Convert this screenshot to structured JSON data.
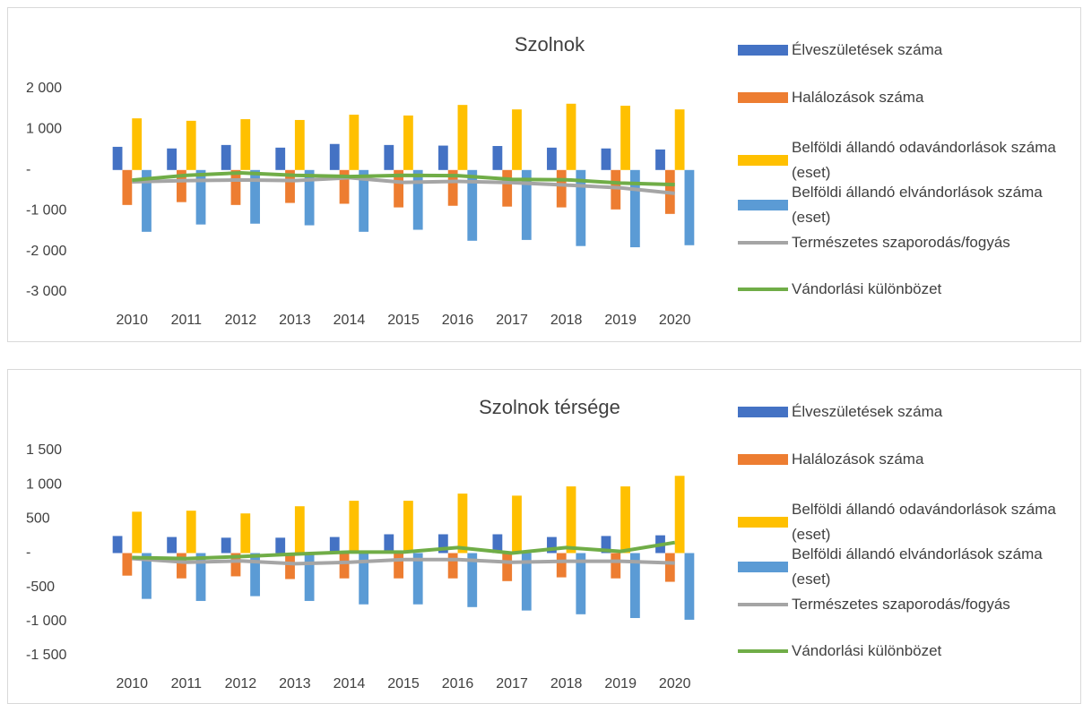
{
  "chart_data": [
    {
      "type": "bar",
      "title": "Szolnok",
      "categories": [
        "2010",
        "2011",
        "2012",
        "2013",
        "2014",
        "2015",
        "2016",
        "2017",
        "2018",
        "2019",
        "2020"
      ],
      "ylim": [
        -3000,
        2000
      ],
      "yticks": [
        {
          "value": -3000,
          "label": "-3 000"
        },
        {
          "value": -2000,
          "label": "-2 000"
        },
        {
          "value": -1000,
          "label": "-1 000"
        },
        {
          "value": 0,
          "label": "-"
        },
        {
          "value": 1000,
          "label": "1 000"
        },
        {
          "value": 2000,
          "label": "2 000"
        }
      ],
      "series": [
        {
          "name": "Élveszületések száma",
          "color": "#4472c4",
          "values": [
            570,
            530,
            615,
            550,
            640,
            615,
            600,
            590,
            550,
            530,
            505
          ]
        },
        {
          "name": "Halálozások száma",
          "color": "#ed7d31",
          "values": [
            -860,
            -790,
            -860,
            -810,
            -830,
            -920,
            -880,
            -900,
            -920,
            -970,
            -1080
          ]
        },
        {
          "name": "Belföldi állandó odavándorlások száma (eset)",
          "color": "#ffc000",
          "values": [
            1270,
            1210,
            1250,
            1230,
            1360,
            1340,
            1600,
            1490,
            1630,
            1580,
            1490
          ]
        },
        {
          "name": "Belföldi állandó elvándorlások száma (eset)",
          "color": "#5b9bd5",
          "values": [
            -1520,
            -1340,
            -1320,
            -1360,
            -1520,
            -1470,
            -1740,
            -1720,
            -1870,
            -1900,
            -1850
          ]
        },
        {
          "name": "Természetes szaporodás/fogyás",
          "color": "#a5a5a5",
          "type": "line",
          "values": [
            -290,
            -260,
            -245,
            -260,
            -190,
            -305,
            -280,
            -310,
            -370,
            -440,
            -575
          ]
        },
        {
          "name": "Vándorlási különbözet",
          "color": "#70ad47",
          "type": "line",
          "values": [
            -250,
            -130,
            -70,
            -130,
            -160,
            -130,
            -140,
            -230,
            -240,
            -320,
            -360
          ]
        }
      ]
    },
    {
      "type": "bar",
      "title": "Szolnok térsége",
      "categories": [
        "2010",
        "2011",
        "2012",
        "2013",
        "2014",
        "2015",
        "2016",
        "2017",
        "2018",
        "2019",
        "2020"
      ],
      "ylim": [
        -1500,
        1500
      ],
      "yticks": [
        {
          "value": -1500,
          "label": "-1 500"
        },
        {
          "value": -1000,
          "label": "-1 000"
        },
        {
          "value": -500,
          "label": "-500"
        },
        {
          "value": 0,
          "label": "-"
        },
        {
          "value": 500,
          "label": "500"
        },
        {
          "value": 1000,
          "label": "1 000"
        },
        {
          "value": 1500,
          "label": "1 500"
        }
      ],
      "series": [
        {
          "name": "Élveszületések száma",
          "color": "#4472c4",
          "values": [
            250,
            235,
            225,
            225,
            235,
            275,
            275,
            275,
            235,
            250,
            260
          ]
        },
        {
          "name": "Halálozások száma",
          "color": "#ed7d31",
          "values": [
            -330,
            -370,
            -340,
            -380,
            -370,
            -370,
            -370,
            -410,
            -355,
            -370,
            -420
          ]
        },
        {
          "name": "Belföldi állandó odavándorlások száma (eset)",
          "color": "#ffc000",
          "values": [
            605,
            620,
            580,
            685,
            765,
            765,
            870,
            840,
            975,
            975,
            1130
          ]
        },
        {
          "name": "Belföldi állandó elvándorlások száma (eset)",
          "color": "#5b9bd5",
          "values": [
            -670,
            -700,
            -630,
            -700,
            -750,
            -750,
            -790,
            -840,
            -895,
            -950,
            -975
          ]
        },
        {
          "name": "Természetes szaporodás/fogyás",
          "color": "#a5a5a5",
          "type": "line",
          "values": [
            -80,
            -135,
            -115,
            -155,
            -135,
            -95,
            -95,
            -135,
            -120,
            -120,
            -145
          ]
        },
        {
          "name": "Vándorlási különbözet",
          "color": "#70ad47",
          "type": "line",
          "values": [
            -65,
            -80,
            -50,
            -15,
            15,
            15,
            80,
            0,
            80,
            25,
            155
          ]
        }
      ]
    }
  ]
}
